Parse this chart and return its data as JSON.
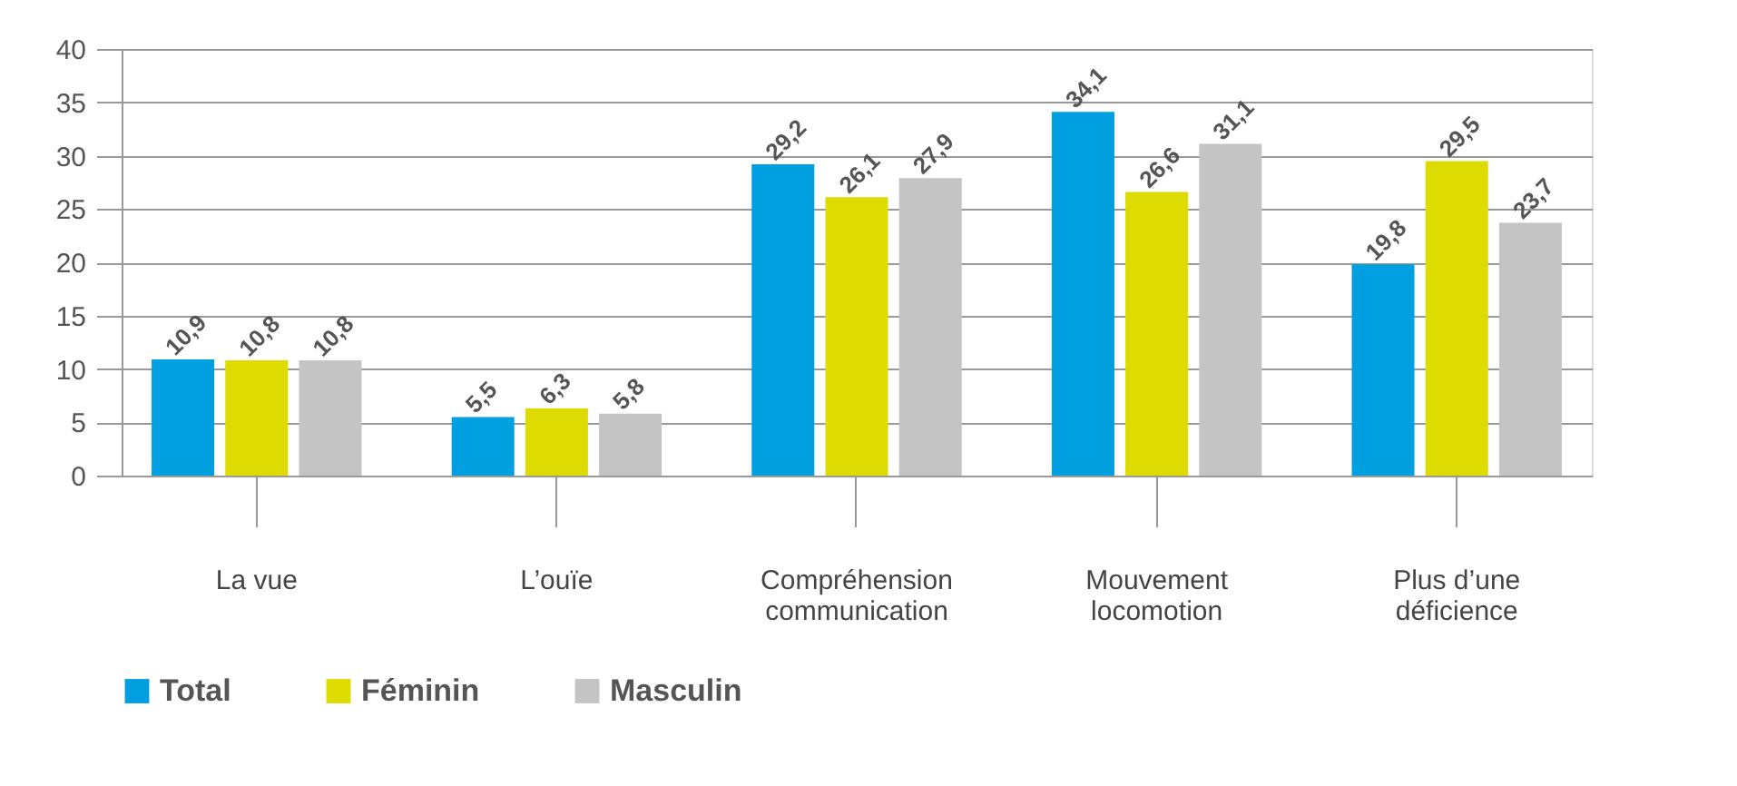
{
  "chart_data": {
    "type": "bar",
    "categories": [
      "La vue",
      "L’ouïe",
      "Compréhension\ncommunication",
      "Mouvement\nlocomotion",
      "Plus d’une\ndéficience"
    ],
    "series": [
      {
        "name": "Total",
        "color": "#00a0e0",
        "values": [
          10.9,
          5.5,
          29.2,
          34.1,
          19.8
        ],
        "value_labels": [
          "10,9",
          "5,5",
          "29,2",
          "34,1",
          "19,8"
        ]
      },
      {
        "name": "Féminin",
        "color": "#dedb00",
        "values": [
          10.8,
          6.3,
          26.1,
          26.6,
          29.5
        ],
        "value_labels": [
          "10,8",
          "6,3",
          "26,1",
          "26,6",
          "29,5"
        ]
      },
      {
        "name": "Masculin",
        "color": "#c4c4c4",
        "values": [
          10.8,
          5.8,
          27.9,
          31.1,
          23.7
        ],
        "value_labels": [
          "10,8",
          "5,8",
          "27,9",
          "31,1",
          "23,7"
        ]
      }
    ],
    "ylim": [
      0,
      40
    ],
    "yticks": [
      0,
      5,
      10,
      15,
      20,
      25,
      30,
      35,
      40
    ],
    "grid": "y",
    "legend": "bottom left"
  }
}
